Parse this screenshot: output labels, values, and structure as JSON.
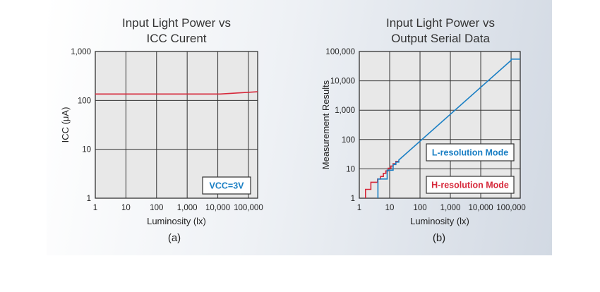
{
  "chart_data": [
    {
      "type": "line",
      "title": [
        "Input Light Power vs",
        "ICC Curent"
      ],
      "xlabel": "Luminosity (lx)",
      "ylabel": "ICC (μA)",
      "caption": "(a)",
      "xscale": "log",
      "yscale": "log",
      "xlim": [
        1,
        200000
      ],
      "ylim": [
        1,
        1000
      ],
      "xticks": [
        1,
        10,
        100,
        1000,
        10000,
        100000
      ],
      "xtick_labels": [
        "1",
        "10",
        "100",
        "1,000",
        "10,000",
        "100,000"
      ],
      "yticks": [
        1,
        10,
        100,
        1000
      ],
      "ytick_labels": [
        "1",
        "10",
        "100",
        "1,000"
      ],
      "grid": true,
      "annotation": {
        "text": "VCC=3V",
        "color": "#1a7fc4",
        "placement": "bottom-right"
      },
      "series": [
        {
          "color": "#d6283a",
          "x": [
            1,
            12000,
            200000
          ],
          "y": [
            135,
            135,
            150
          ]
        }
      ]
    },
    {
      "type": "line",
      "title": [
        "Input Light Power vs",
        "Output Serial Data"
      ],
      "xlabel": "Luminosity (lx)",
      "ylabel": "Measurement Results",
      "caption": "(b)",
      "xscale": "log",
      "yscale": "log",
      "xlim": [
        1,
        200000
      ],
      "ylim": [
        1,
        100000
      ],
      "xticks": [
        1,
        10,
        100,
        1000,
        10000,
        100000
      ],
      "xtick_labels": [
        "1",
        "10",
        "100",
        "1,000",
        "10,000",
        "100,000"
      ],
      "yticks": [
        1,
        10,
        100,
        1000,
        10000,
        100000
      ],
      "ytick_labels": [
        "1",
        "10",
        "100",
        "1,000",
        "10,000",
        "100,000"
      ],
      "grid": true,
      "legend": [
        {
          "text": "L-resolution Mode",
          "color": "#1a7fc4"
        },
        {
          "text": "H-resolution Mode",
          "color": "#d6283a"
        }
      ],
      "series": [
        {
          "color": "#d6283a",
          "x": [
            1.6,
            1.6,
            2.4,
            2.4,
            4.0,
            4.0,
            5.0,
            5.0,
            6.2,
            6.2,
            7.5,
            7.5,
            9,
            9,
            11,
            11,
            13,
            13,
            16,
            16,
            20
          ],
          "y": [
            1,
            2,
            2,
            3.5,
            3.5,
            4.5,
            4.5,
            5.5,
            5.5,
            7,
            7,
            8.5,
            8.5,
            10.5,
            10.5,
            12.5,
            12.5,
            15,
            15,
            18,
            18
          ]
        },
        {
          "color": "#1a7fc4",
          "x": [
            4.1,
            4.1,
            8.3,
            8.3,
            13,
            13,
            16,
            16,
            20,
            20,
            100000,
            100000,
            200000
          ],
          "y": [
            1,
            4.5,
            4.5,
            9,
            9,
            14,
            14,
            17,
            17,
            20,
            50000,
            55000,
            55000
          ]
        }
      ]
    }
  ]
}
